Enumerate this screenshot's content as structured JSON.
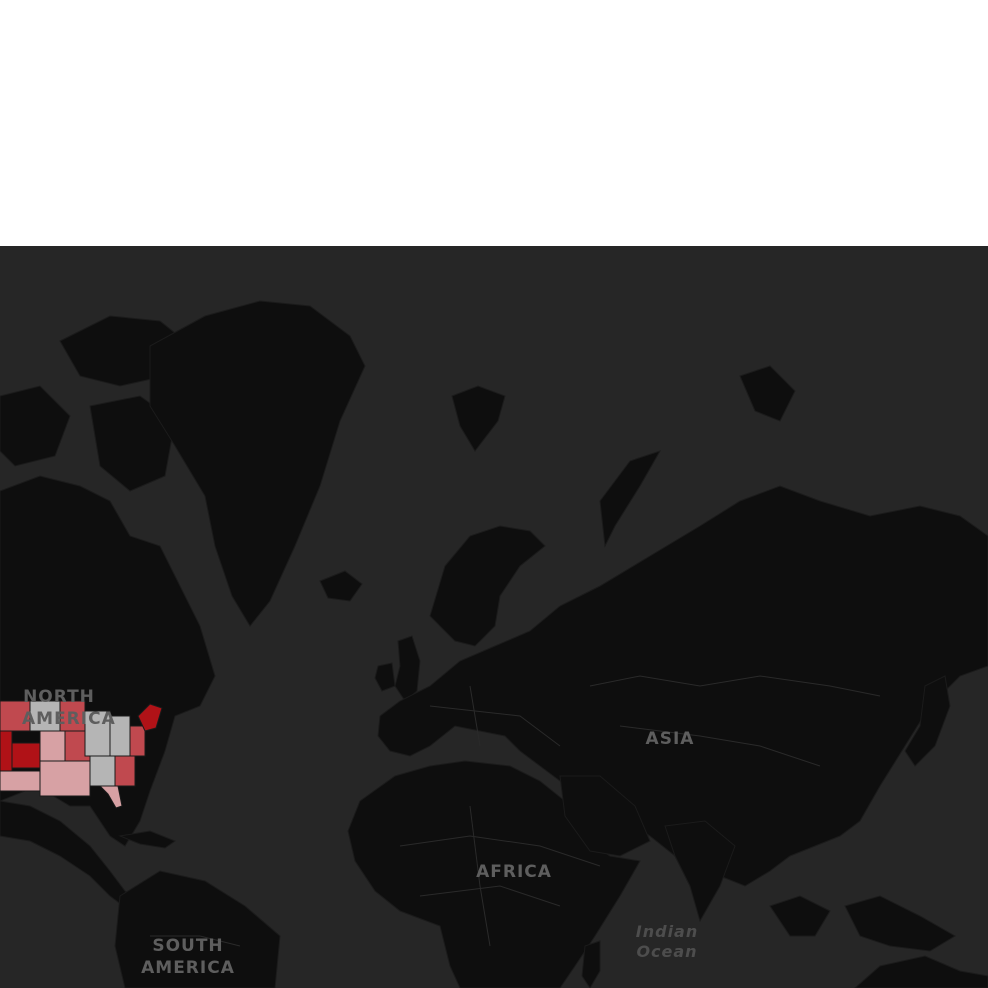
{
  "map": {
    "labels": {
      "north_america": "NORTH\nAMERICA",
      "south_america": "SOUTH\nAMERICA",
      "africa": "AFRICA",
      "asia": "ASIA",
      "indian_ocean": "Indian\nOcean"
    },
    "colors": {
      "background": "#262626",
      "land": "#0e0e0e",
      "border": "#1b1b1b",
      "choropleth_high": "#b01217",
      "choropleth_mid": "#c0494f",
      "choropleth_low": "#d7a1a4",
      "choropleth_none": "#b5b5b5"
    }
  }
}
